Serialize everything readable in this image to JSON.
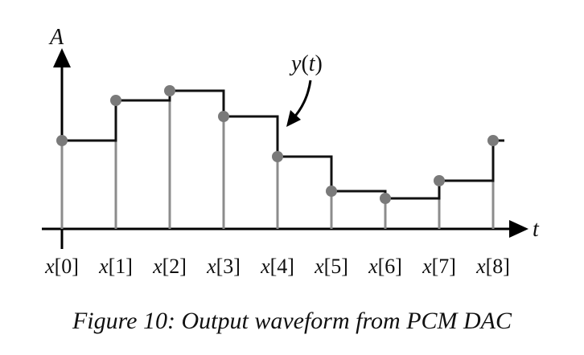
{
  "axes": {
    "y_label": "A",
    "x_label": "t"
  },
  "curve_label": {
    "var": "y",
    "open": "(",
    "arg": "t",
    "close": ")"
  },
  "samples": [
    {
      "var": "x",
      "index": "[0]",
      "amplitude": 110
    },
    {
      "var": "x",
      "index": "[1]",
      "amplitude": 160
    },
    {
      "var": "x",
      "index": "[2]",
      "amplitude": 172
    },
    {
      "var": "x",
      "index": "[3]",
      "amplitude": 140
    },
    {
      "var": "x",
      "index": "[4]",
      "amplitude": 90
    },
    {
      "var": "x",
      "index": "[5]",
      "amplitude": 47
    },
    {
      "var": "x",
      "index": "[6]",
      "amplitude": 38
    },
    {
      "var": "x",
      "index": "[7]",
      "amplitude": 60
    },
    {
      "var": "x",
      "index": "[8]",
      "amplitude": 110
    }
  ],
  "colors": {
    "stem": "#8c8c8c",
    "dot": "#7a7a7a",
    "line": "#111111",
    "axis": "#000000"
  },
  "caption": "Figure 10: Output waveform from PCM DAC"
}
